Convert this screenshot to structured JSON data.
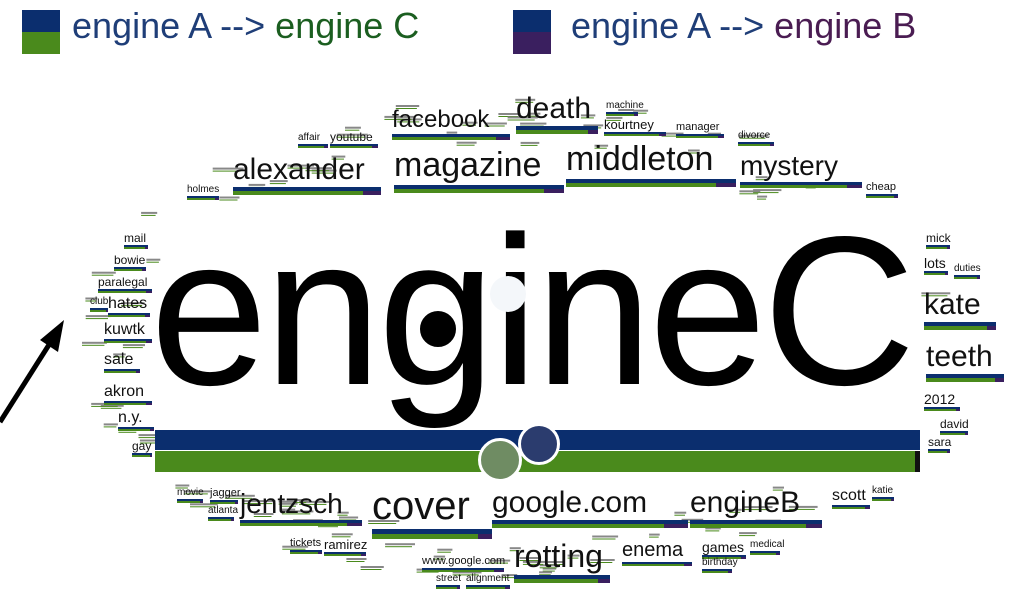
{
  "colors": {
    "blue": "#0b2e6e",
    "green": "#4a8a1c",
    "purple": "#3a1f5f",
    "text_blue": "#1f3e78",
    "text_green": "#1b5e20",
    "text_purple": "#4a1c52"
  },
  "legend": [
    {
      "from": "engine A -->",
      "to": "engine C",
      "to_color": "text_green",
      "swatch_bottom": "green"
    },
    {
      "from": "engine A -->",
      "to": "engine B",
      "to_color": "text_purple",
      "swatch_bottom": "purple"
    }
  ],
  "center_word": "engineC",
  "words": {
    "facebook": "facebook",
    "death": "death",
    "machine": "machine",
    "kourtney": "kourtney",
    "manager": "manager",
    "divorce": "divorce",
    "youtube": "youtube",
    "affair": "affair",
    "alexander": "alexander",
    "magazine": "magazine",
    "middleton": "middleton",
    "mystery": "mystery",
    "holmes": "holmes",
    "cheap": "cheap",
    "mail": "mail",
    "bowie": "bowie",
    "paralegal": "paralegal",
    "hates": "hates",
    "club": "club",
    "kuwtk": "kuwtk",
    "sale": "sale",
    "akron": "akron",
    "ny": "n.y.",
    "gay": "gay",
    "mick": "mick",
    "lots": "lots",
    "duties": "duties",
    "kate": "kate",
    "teeth": "teeth",
    "y2012": "2012",
    "david": "david",
    "sara": "sara",
    "movie": "movie",
    "jagger": "jagger",
    "atlanta": "atlanta",
    "jentzsch": "jentzsch",
    "cover": "cover",
    "google": "google.com",
    "engineB": "engineB",
    "scott": "scott",
    "katie": "katie",
    "tickets": "tickets",
    "ramirez": "ramirez",
    "wwwgoogle": "www.google.com",
    "rotting": "rotting",
    "enema": "enema",
    "games": "games",
    "medical": "medical",
    "birthday": "birthday",
    "street": "street",
    "alignment": "alignment"
  }
}
